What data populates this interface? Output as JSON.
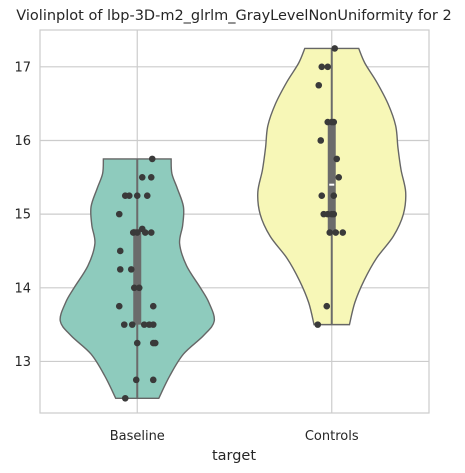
{
  "chart_data": {
    "type": "violin",
    "title": "Violinplot of lbp-3D-m2_glrlm_GrayLevelNonUniformity for 2",
    "xlabel": "target",
    "ylabel": "",
    "ylim": [
      12.3,
      17.5
    ],
    "yticks": [
      13,
      14,
      15,
      16,
      17
    ],
    "grid": true,
    "categories": [
      "Baseline",
      "Controls"
    ],
    "colors": {
      "Baseline": "#8ecbbd",
      "Controls": "#f7f7b7",
      "points": "#3a3a3a",
      "box": "#6b6b6b",
      "outline": "#666666"
    },
    "series": [
      {
        "category": "Baseline",
        "min": 12.5,
        "max": 15.75,
        "q1": 13.5,
        "median": 14.75,
        "q3": 14.8,
        "violin_profile": [
          [
            12.5,
            0.28
          ],
          [
            12.8,
            0.42
          ],
          [
            13.1,
            0.6
          ],
          [
            13.35,
            0.86
          ],
          [
            13.55,
            1.0
          ],
          [
            13.8,
            0.93
          ],
          [
            14.0,
            0.82
          ],
          [
            14.3,
            0.64
          ],
          [
            14.6,
            0.55
          ],
          [
            14.85,
            0.59
          ],
          [
            15.1,
            0.6
          ],
          [
            15.35,
            0.52
          ],
          [
            15.55,
            0.45
          ],
          [
            15.75,
            0.44
          ]
        ],
        "points": [
          {
            "y": 15.75,
            "j": 0.15
          },
          {
            "y": 15.5,
            "j": 0.05
          },
          {
            "y": 15.5,
            "j": 0.14
          },
          {
            "y": 15.25,
            "j": -0.12
          },
          {
            "y": 15.25,
            "j": -0.08
          },
          {
            "y": 15.25,
            "j": 0.0
          },
          {
            "y": 15.25,
            "j": 0.1
          },
          {
            "y": 15.0,
            "j": -0.18
          },
          {
            "y": 14.8,
            "j": 0.05
          },
          {
            "y": 14.75,
            "j": -0.04
          },
          {
            "y": 14.75,
            "j": 0.0
          },
          {
            "y": 14.75,
            "j": 0.08
          },
          {
            "y": 14.75,
            "j": 0.14
          },
          {
            "y": 14.5,
            "j": -0.17
          },
          {
            "y": 14.25,
            "j": -0.17
          },
          {
            "y": 14.25,
            "j": -0.06
          },
          {
            "y": 14.0,
            "j": -0.03
          },
          {
            "y": 14.0,
            "j": 0.02
          },
          {
            "y": 13.75,
            "j": -0.18
          },
          {
            "y": 13.75,
            "j": 0.16
          },
          {
            "y": 13.5,
            "j": -0.13
          },
          {
            "y": 13.5,
            "j": -0.05
          },
          {
            "y": 13.5,
            "j": 0.07
          },
          {
            "y": 13.5,
            "j": 0.12
          },
          {
            "y": 13.5,
            "j": 0.16
          },
          {
            "y": 13.25,
            "j": 0.0
          },
          {
            "y": 13.25,
            "j": 0.16
          },
          {
            "y": 13.25,
            "j": 0.18
          },
          {
            "y": 12.75,
            "j": -0.01
          },
          {
            "y": 12.75,
            "j": 0.16
          },
          {
            "y": 12.5,
            "j": -0.12
          }
        ]
      },
      {
        "category": "Controls",
        "min": 13.5,
        "max": 17.25,
        "q1": 14.75,
        "median": 15.4,
        "q3": 16.25,
        "violin_profile": [
          [
            13.5,
            0.23
          ],
          [
            13.8,
            0.3
          ],
          [
            14.1,
            0.42
          ],
          [
            14.4,
            0.58
          ],
          [
            14.7,
            0.8
          ],
          [
            15.0,
            0.93
          ],
          [
            15.3,
            0.96
          ],
          [
            15.6,
            0.9
          ],
          [
            15.9,
            0.86
          ],
          [
            16.2,
            0.83
          ],
          [
            16.5,
            0.73
          ],
          [
            16.8,
            0.58
          ],
          [
            17.05,
            0.43
          ],
          [
            17.25,
            0.35
          ]
        ],
        "points": [
          {
            "y": 17.25,
            "j": 0.03
          },
          {
            "y": 17.0,
            "j": -0.1
          },
          {
            "y": 17.0,
            "j": -0.04
          },
          {
            "y": 16.75,
            "j": -0.13
          },
          {
            "y": 16.25,
            "j": -0.04
          },
          {
            "y": 16.25,
            "j": 0.0
          },
          {
            "y": 16.25,
            "j": 0.02
          },
          {
            "y": 16.0,
            "j": -0.11
          },
          {
            "y": 15.75,
            "j": 0.05
          },
          {
            "y": 15.5,
            "j": 0.07
          },
          {
            "y": 15.25,
            "j": -0.1
          },
          {
            "y": 15.25,
            "j": 0.02
          },
          {
            "y": 15.0,
            "j": -0.08
          },
          {
            "y": 15.0,
            "j": -0.04
          },
          {
            "y": 15.0,
            "j": 0.0
          },
          {
            "y": 15.0,
            "j": 0.02
          },
          {
            "y": 14.75,
            "j": -0.02
          },
          {
            "y": 14.75,
            "j": 0.04
          },
          {
            "y": 14.75,
            "j": 0.11
          },
          {
            "y": 13.75,
            "j": -0.05
          },
          {
            "y": 13.5,
            "j": -0.14
          }
        ]
      }
    ]
  }
}
